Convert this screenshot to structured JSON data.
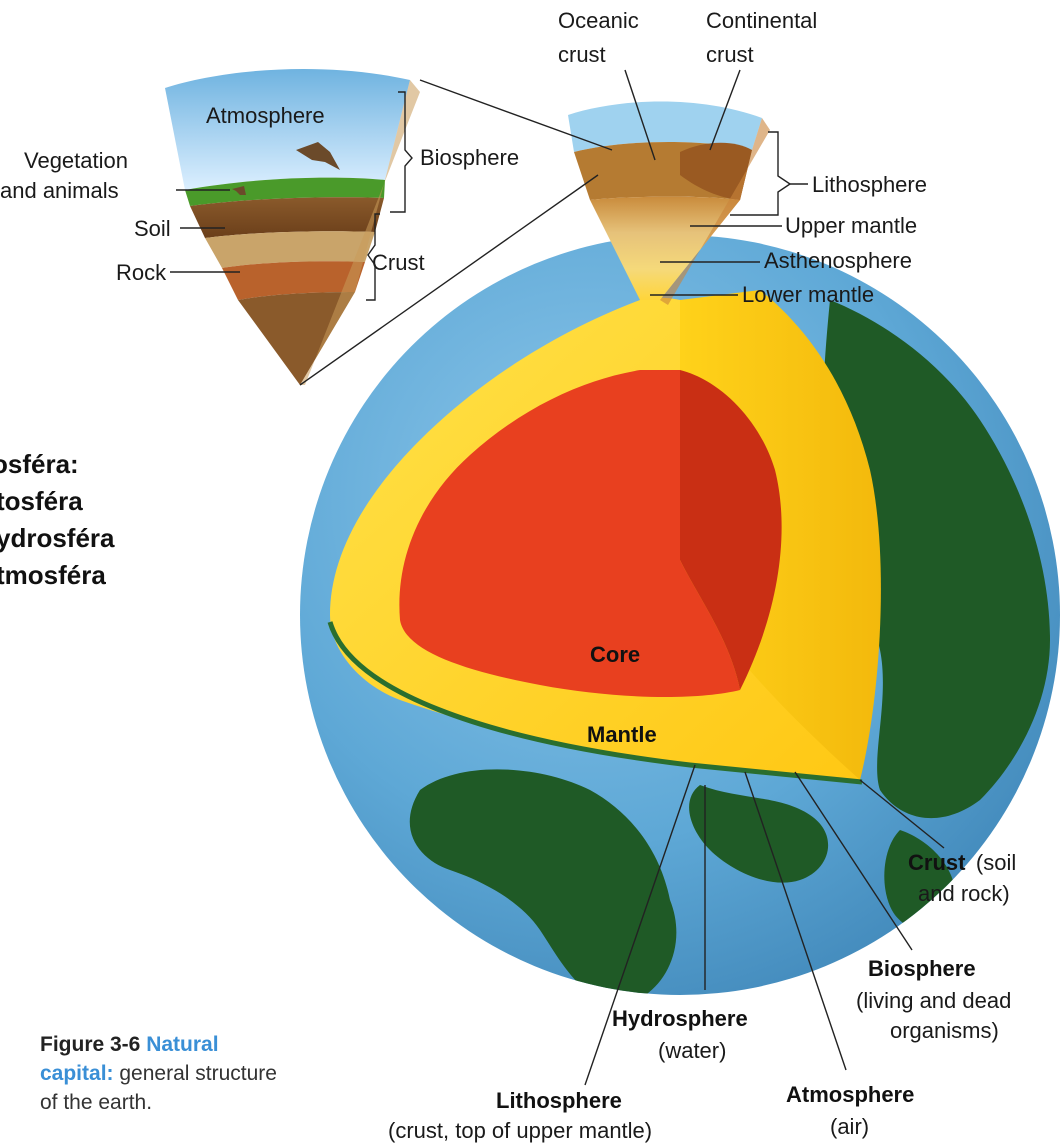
{
  "slide_text": {
    "line1": "osféra:",
    "line2": "tosféra",
    "line3": "ydrosféra",
    "line4": "tmosféra"
  },
  "top_left_wedge": {
    "atmosphere": "Atmosphere",
    "vegetation": "Vegetation",
    "and_animals": "and animals",
    "soil": "Soil",
    "rock": "Rock",
    "biosphere": "Biosphere",
    "crust": "Crust"
  },
  "top_right_wedge": {
    "oceanic_1": "Oceanic",
    "oceanic_2": "crust",
    "continental_1": "Continental",
    "continental_2": "crust",
    "lithosphere": "Lithosphere",
    "upper_mantle": "Upper mantle",
    "asthenosphere": "Asthenosphere",
    "lower_mantle": "Lower mantle"
  },
  "globe": {
    "core": "Core",
    "mantle": "Mantle",
    "crust_bold": "Crust",
    "crust_rest": "(soil",
    "crust_line2": "and rock)",
    "biosphere": "Biosphere",
    "biosphere_l2": "(living and dead",
    "biosphere_l3": "organisms)",
    "hydrosphere": "Hydrosphere",
    "hydrosphere_l2": "(water)",
    "lithosphere": "Lithosphere",
    "lithosphere_l2": "(crust, top of upper mantle)",
    "atmosphere": "Atmosphere",
    "atmosphere_l2": "(air)"
  },
  "caption": {
    "figure": "Figure 3-6",
    "title": "Natural capital:",
    "text": "general structure of the earth."
  },
  "colors": {
    "core": "#e8401f",
    "mantle": "#ffd21a",
    "ocean": "#5fa9d8",
    "land": "#1f5a26",
    "caption_accent": "#3a8fd6"
  }
}
